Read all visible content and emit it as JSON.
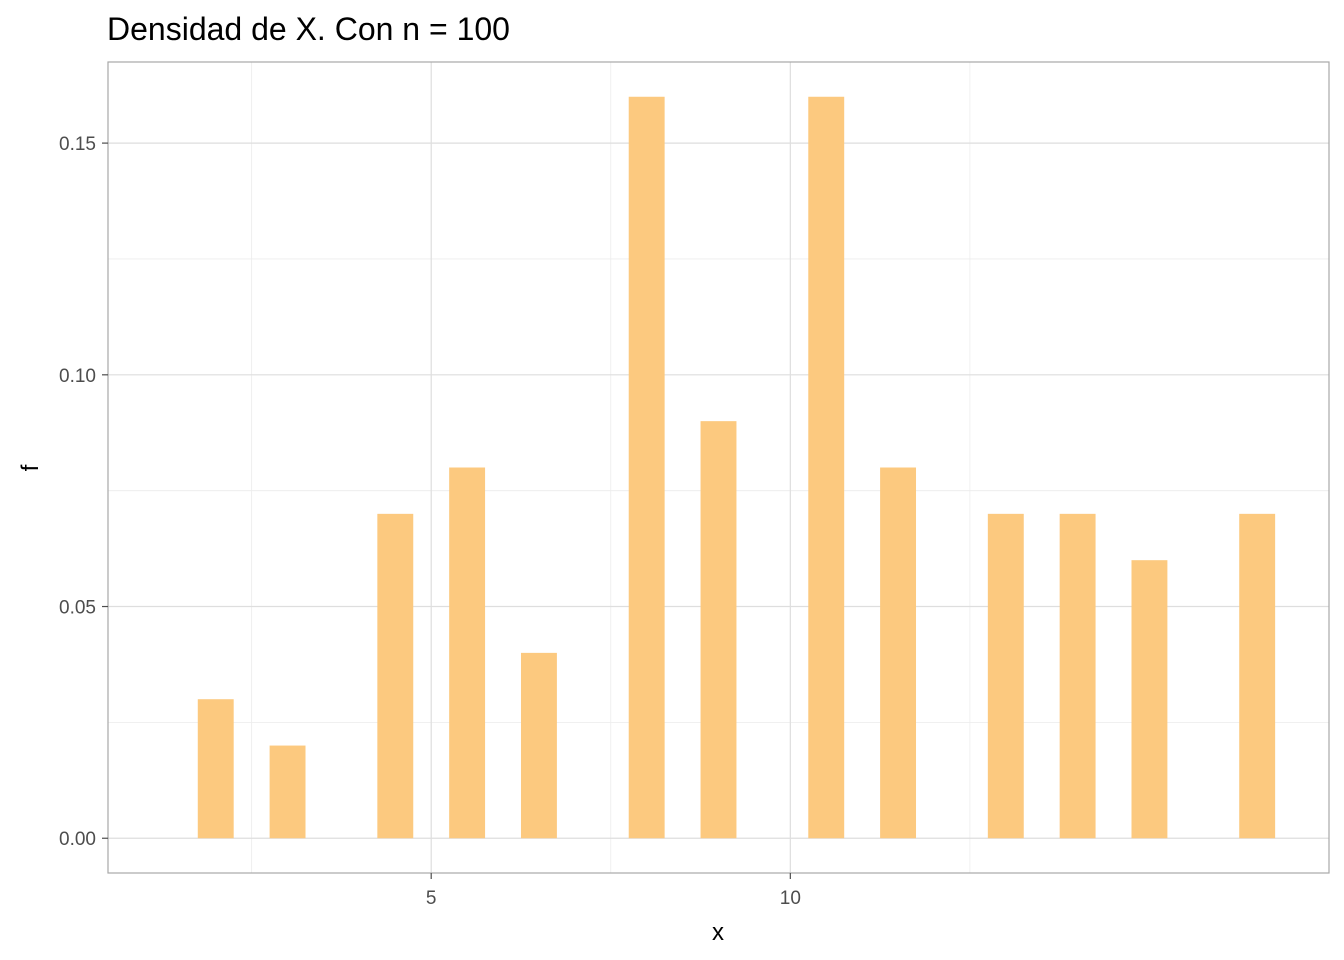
{
  "chart_data": {
    "type": "bar",
    "title": "Densidad de X. Con n = 100",
    "xlabel": "x",
    "ylabel": "f",
    "x": [
      2,
      3,
      4.5,
      5.5,
      6.5,
      8,
      9,
      10.5,
      11.5,
      13,
      14,
      15,
      16.5
    ],
    "values": [
      0.03,
      0.02,
      0.07,
      0.08,
      0.04,
      0.16,
      0.09,
      0.16,
      0.08,
      0.07,
      0.07,
      0.06,
      0.07
    ],
    "xlim": [
      0.5,
      17.5
    ],
    "ylim": [
      -0.0075,
      0.1675
    ],
    "x_ticks": [
      5,
      10
    ],
    "x_tick_labels": [
      "5",
      "10"
    ],
    "x_minor_ticks": [
      2.5,
      7.5,
      12.5
    ],
    "y_ticks": [
      0,
      0.05,
      0.1,
      0.15
    ],
    "y_tick_labels": [
      "0.00",
      "0.05",
      "0.10",
      "0.15"
    ],
    "y_minor_ticks": [
      0.025,
      0.075,
      0.125
    ],
    "bar_color": "#fcc97f",
    "grid": true,
    "legend": "none"
  }
}
